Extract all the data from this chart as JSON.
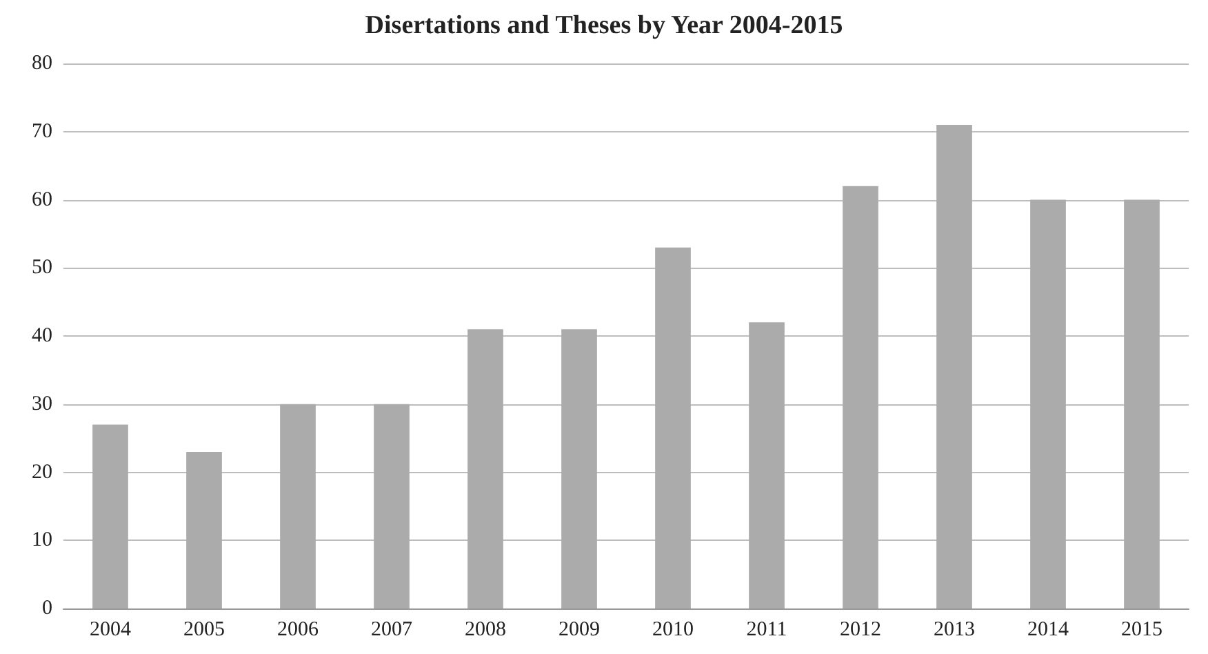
{
  "chart_data": {
    "type": "bar",
    "title": "Disertations and Theses by Year 2004-2015",
    "categories": [
      "2004",
      "2005",
      "2006",
      "2007",
      "2008",
      "2009",
      "2010",
      "2011",
      "2012",
      "2013",
      "2014",
      "2015"
    ],
    "values": [
      27,
      23,
      30,
      30,
      41,
      41,
      53,
      42,
      62,
      71,
      60,
      60
    ],
    "color": "#ababab",
    "ylim": [
      0,
      80
    ],
    "yticks": [
      0,
      10,
      20,
      30,
      40,
      50,
      60,
      70,
      80
    ],
    "grid": "y"
  }
}
